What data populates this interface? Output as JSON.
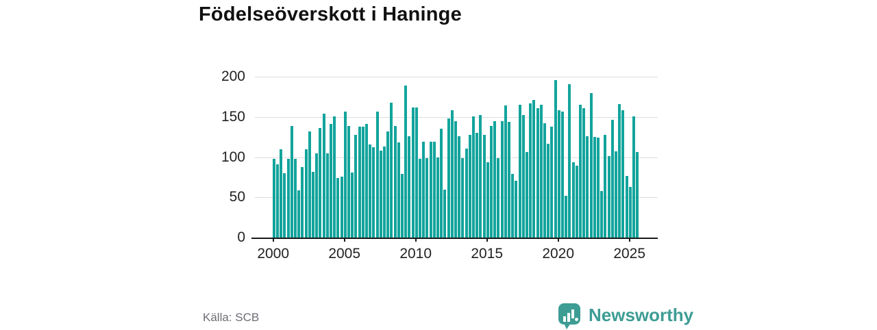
{
  "title": "Födelseöverskott i Haninge",
  "source": "Källa: SCB",
  "logo": {
    "text": "Newsworthy",
    "icon": "speech-bubble-bar-chart-icon"
  },
  "colors": {
    "bar": "#12a49c",
    "grid": "#dcdcdc",
    "axis": "#1a1a1a",
    "tick_label": "#222222",
    "title": "#111111",
    "source_text": "#6c6c75",
    "logo": "#3d9d94",
    "background": "#ffffff"
  },
  "chart_data": {
    "type": "bar",
    "title": "Födelseöverskott i Haninge",
    "xlabel": "",
    "ylabel": "",
    "x_start": "2000 Q1",
    "x_end": "2025 Q3",
    "frequency": "quarterly",
    "x_tick_labels": [
      "2000",
      "2005",
      "2010",
      "2015",
      "2020",
      "2025"
    ],
    "y_ticks": [
      0,
      50,
      100,
      150,
      200
    ],
    "ylim": [
      0,
      200
    ],
    "grid": "horizontal",
    "legend": "none",
    "values": [
      98,
      91,
      110,
      80,
      98,
      139,
      98,
      59,
      88,
      110,
      132,
      82,
      105,
      136,
      154,
      105,
      141,
      151,
      74,
      76,
      157,
      139,
      81,
      128,
      138,
      138,
      141,
      116,
      112,
      157,
      108,
      113,
      132,
      168,
      139,
      118,
      79,
      189,
      126,
      162,
      162,
      98,
      119,
      99,
      119,
      119,
      100,
      135,
      60,
      148,
      158,
      145,
      126,
      99,
      111,
      128,
      151,
      130,
      152,
      128,
      94,
      139,
      145,
      99,
      145,
      164,
      144,
      79,
      71,
      165,
      152,
      106,
      167,
      171,
      161,
      165,
      142,
      117,
      138,
      196,
      158,
      157,
      52,
      191,
      94,
      89,
      165,
      161,
      126,
      180,
      125,
      124,
      58,
      128,
      101,
      146,
      107,
      166,
      158,
      77,
      63,
      151,
      106
    ]
  }
}
